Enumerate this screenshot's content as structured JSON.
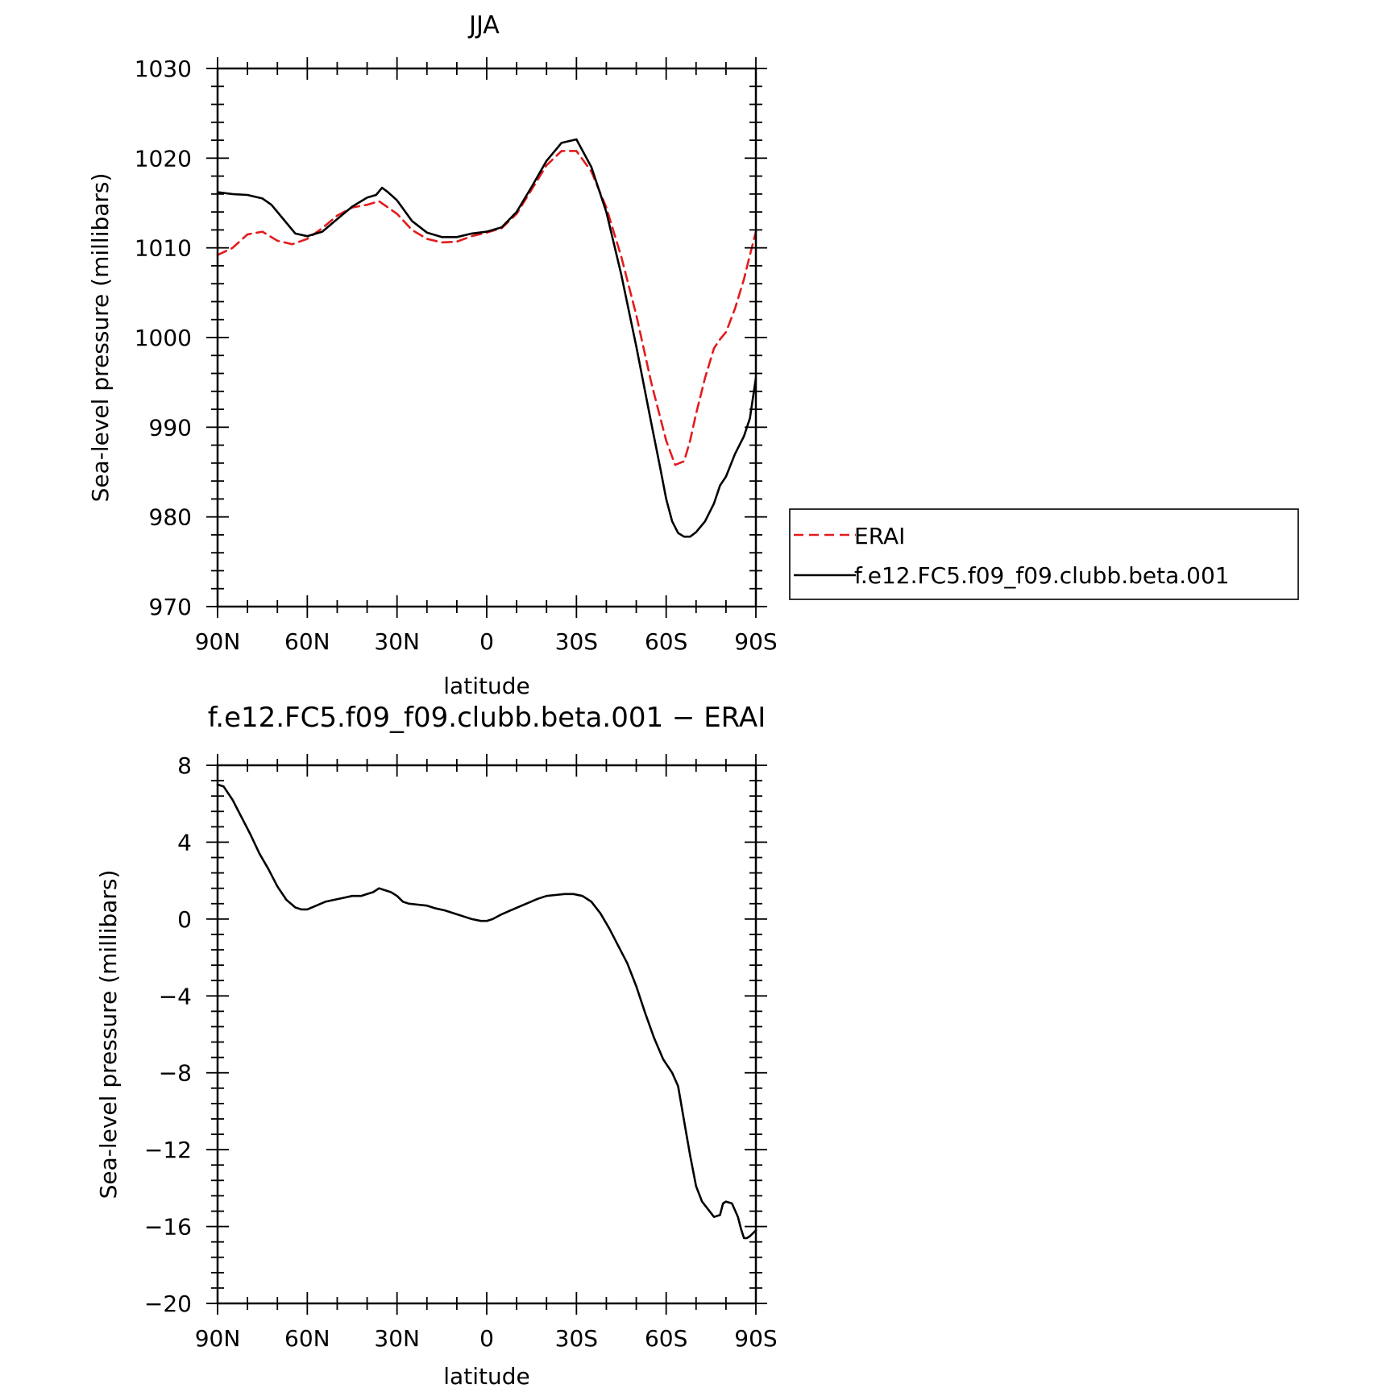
{
  "chart_data": [
    {
      "type": "line",
      "title": "JJA",
      "xlabel": "latitude",
      "ylabel": "Sea-level pressure (millibars)",
      "xlim": [
        -90,
        90
      ],
      "ylim": [
        970,
        1030
      ],
      "x_ticks": [
        -90,
        -60,
        -30,
        0,
        30,
        60,
        90
      ],
      "x_tick_labels": [
        "90N",
        "60N",
        "30N",
        "0",
        "30S",
        "60S",
        "90S"
      ],
      "y_ticks": [
        970,
        980,
        990,
        1000,
        1010,
        1020,
        1030
      ],
      "y_tick_labels": [
        "970",
        "980",
        "990",
        "1000",
        "1010",
        "1020",
        "1030"
      ],
      "legend_position": "right",
      "series": [
        {
          "name": "ERAI",
          "color": "#e41a1c",
          "dash": "dashed",
          "x": [
            -90,
            -85,
            -80,
            -75,
            -70,
            -65,
            -60,
            -55,
            -50,
            -45,
            -40,
            -36,
            -33,
            -30,
            -25,
            -20,
            -15,
            -10,
            -5,
            0,
            5,
            10,
            15,
            20,
            25,
            30,
            35,
            40,
            45,
            50,
            55,
            60,
            63,
            66,
            68,
            70,
            73,
            76,
            78,
            80,
            83,
            86,
            88,
            90
          ],
          "y": [
            1009.2,
            1010.0,
            1011.5,
            1011.8,
            1010.8,
            1010.4,
            1011.0,
            1012.2,
            1013.6,
            1014.5,
            1014.8,
            1015.2,
            1014.5,
            1013.8,
            1012.0,
            1011.0,
            1010.6,
            1010.7,
            1011.3,
            1011.7,
            1012.2,
            1013.8,
            1016.5,
            1019.2,
            1020.8,
            1020.8,
            1018.5,
            1014.5,
            1009.0,
            1002.5,
            995.0,
            988.5,
            985.8,
            986.2,
            988.5,
            991.5,
            995.5,
            998.8,
            999.8,
            1000.6,
            1003.2,
            1006.5,
            1009.2,
            1011.8
          ]
        },
        {
          "name": "f.e12.FC5.f09_f09.clubb.beta.001",
          "color": "#000000",
          "dash": "solid",
          "x": [
            -90,
            -85,
            -80,
            -75,
            -72,
            -68,
            -64,
            -60,
            -55,
            -50,
            -45,
            -40,
            -37,
            -35,
            -33,
            -30,
            -25,
            -20,
            -15,
            -10,
            -5,
            0,
            5,
            10,
            15,
            20,
            25,
            30,
            35,
            40,
            45,
            50,
            55,
            58,
            60,
            62,
            64,
            66,
            68,
            70,
            73,
            76,
            78,
            80,
            83,
            86,
            88,
            90
          ],
          "y": [
            1016.2,
            1016.0,
            1015.9,
            1015.5,
            1014.8,
            1013.2,
            1011.6,
            1011.3,
            1011.8,
            1013.2,
            1014.6,
            1015.6,
            1015.9,
            1016.7,
            1016.2,
            1015.3,
            1013.0,
            1011.7,
            1011.2,
            1011.2,
            1011.6,
            1011.8,
            1012.3,
            1014.0,
            1016.8,
            1019.7,
            1021.7,
            1022.1,
            1019.0,
            1014.0,
            1007.0,
            999.0,
            990.5,
            985.5,
            982.0,
            979.5,
            978.2,
            977.8,
            977.8,
            978.3,
            979.5,
            981.5,
            983.5,
            984.5,
            987.0,
            989.0,
            991.0,
            995.5
          ]
        }
      ]
    },
    {
      "type": "line",
      "title": "f.e12.FC5.f09_f09.clubb.beta.001 − ERAI",
      "xlabel": "latitude",
      "ylabel": "Sea-level pressure (millibars)",
      "xlim": [
        -90,
        90
      ],
      "ylim": [
        -20,
        8
      ],
      "x_ticks": [
        -90,
        -60,
        -30,
        0,
        30,
        60,
        90
      ],
      "x_tick_labels": [
        "90N",
        "60N",
        "30N",
        "0",
        "30S",
        "60S",
        "90S"
      ],
      "y_ticks": [
        -20,
        -16,
        -12,
        -8,
        -4,
        0,
        4,
        8
      ],
      "y_tick_labels": [
        "−20",
        "−16",
        "−12",
        "−8",
        "−4",
        "0",
        "4",
        "8"
      ],
      "series": [
        {
          "color": "#000000",
          "dash": "solid",
          "x": [
            -90,
            -88,
            -85,
            -82,
            -79,
            -76,
            -73,
            -70,
            -67,
            -64,
            -62,
            -60,
            -57,
            -54,
            -51,
            -48,
            -45,
            -42,
            -40,
            -38,
            -36,
            -34,
            -32,
            -30,
            -28,
            -26,
            -23,
            -20,
            -17,
            -14,
            -11,
            -8,
            -5,
            -2,
            0,
            2,
            5,
            8,
            11,
            14,
            17,
            20,
            23,
            26,
            29,
            32,
            35,
            38,
            41,
            44,
            47,
            50,
            53,
            56,
            59,
            62,
            64,
            66,
            68,
            70,
            72,
            74,
            76,
            78,
            79,
            80,
            82,
            84,
            85,
            86,
            87,
            88,
            90
          ],
          "y": [
            7.0,
            6.9,
            6.2,
            5.3,
            4.4,
            3.4,
            2.6,
            1.7,
            1.0,
            0.6,
            0.5,
            0.5,
            0.7,
            0.9,
            1.0,
            1.1,
            1.2,
            1.2,
            1.3,
            1.4,
            1.6,
            1.5,
            1.4,
            1.2,
            0.9,
            0.8,
            0.75,
            0.7,
            0.55,
            0.45,
            0.3,
            0.15,
            0.0,
            -0.1,
            -0.1,
            0.0,
            0.25,
            0.45,
            0.65,
            0.85,
            1.05,
            1.2,
            1.25,
            1.3,
            1.3,
            1.2,
            0.9,
            0.3,
            -0.5,
            -1.4,
            -2.3,
            -3.5,
            -4.9,
            -6.2,
            -7.3,
            -8.0,
            -8.7,
            -10.5,
            -12.3,
            -13.9,
            -14.7,
            -15.1,
            -15.5,
            -15.4,
            -14.8,
            -14.7,
            -14.8,
            -15.5,
            -16.1,
            -16.6,
            -16.6,
            -16.5,
            -16.2
          ]
        }
      ]
    }
  ]
}
